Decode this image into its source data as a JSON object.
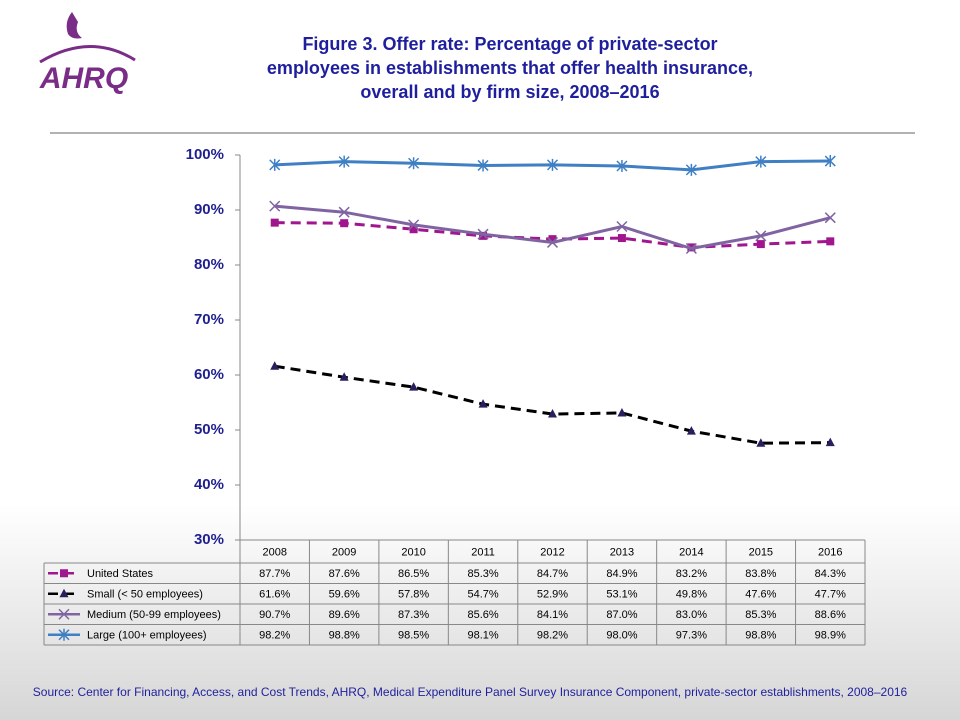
{
  "logo": "AHRQ",
  "chart_data": {
    "type": "line",
    "title": [
      "Figure 3. Offer rate: Percentage of private-sector",
      "employees in establishments that offer health insurance,",
      "overall and by firm size, 2008–2016"
    ],
    "categories": [
      "2008",
      "2009",
      "2010",
      "2011",
      "2012",
      "2013",
      "2014",
      "2015",
      "2016"
    ],
    "ylim": [
      30,
      100
    ],
    "yticks": [
      {
        "value": 30,
        "label": "30%"
      },
      {
        "value": 40,
        "label": "40%"
      },
      {
        "value": 50,
        "label": "50%"
      },
      {
        "value": 60,
        "label": "60%"
      },
      {
        "value": 70,
        "label": "70%"
      },
      {
        "value": 80,
        "label": "80%"
      },
      {
        "value": 90,
        "label": "90%"
      },
      {
        "value": 100,
        "label": "100%"
      }
    ],
    "series": [
      {
        "name": "United States",
        "color": "#a0168f",
        "marker": "square",
        "dashed": true,
        "values": [
          87.7,
          87.6,
          86.5,
          85.3,
          84.7,
          84.9,
          83.2,
          83.8,
          84.3
        ],
        "value_labels": [
          "87.7%",
          "87.6%",
          "86.5%",
          "85.3%",
          "84.7%",
          "84.9%",
          "83.2%",
          "83.8%",
          "84.3%"
        ]
      },
      {
        "name": "Small (< 50 employees)",
        "color": "#000000",
        "marker": "triangle",
        "dashed": true,
        "values": [
          61.6,
          59.6,
          57.8,
          54.7,
          52.9,
          53.1,
          49.8,
          47.6,
          47.7
        ],
        "value_labels": [
          "61.6%",
          "59.6%",
          "57.8%",
          "54.7%",
          "52.9%",
          "53.1%",
          "49.8%",
          "47.6%",
          "47.7%"
        ]
      },
      {
        "name": "Medium (50-99 employees)",
        "color": "#8064a2",
        "marker": "x",
        "dashed": false,
        "values": [
          90.7,
          89.6,
          87.3,
          85.6,
          84.1,
          87.0,
          83.0,
          85.3,
          88.6
        ],
        "value_labels": [
          "90.7%",
          "89.6%",
          "87.3%",
          "85.6%",
          "84.1%",
          "87.0%",
          "83.0%",
          "85.3%",
          "88.6%"
        ]
      },
      {
        "name": "Large (100+ employees)",
        "color": "#3f7fc4",
        "marker": "star",
        "dashed": false,
        "values": [
          98.2,
          98.8,
          98.5,
          98.1,
          98.2,
          98.0,
          97.3,
          98.8,
          98.9
        ],
        "value_labels": [
          "98.2%",
          "98.8%",
          "98.5%",
          "98.1%",
          "98.2%",
          "98.0%",
          "97.3%",
          "98.8%",
          "98.9%"
        ]
      }
    ],
    "source": "Source: Center for Financing, Access, and Cost Trends, AHRQ, Medical Expenditure Panel Survey Insurance Component, private-sector establishments, 2008–2016"
  }
}
